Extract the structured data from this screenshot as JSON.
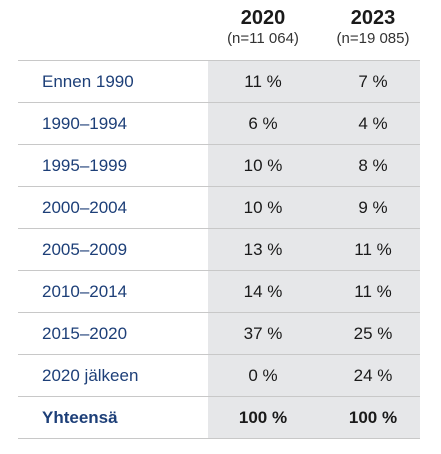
{
  "columns": [
    {
      "year": "2020",
      "n": "(n=11 064)"
    },
    {
      "year": "2023",
      "n": "(n=19 085)"
    }
  ],
  "rows": [
    {
      "label": "Ennen 1990",
      "v2020": "11 %",
      "v2023": "7 %"
    },
    {
      "label": "1990–1994",
      "v2020": "6 %",
      "v2023": "4 %"
    },
    {
      "label": "1995–1999",
      "v2020": "10 %",
      "v2023": "8 %"
    },
    {
      "label": "2000–2004",
      "v2020": "10 %",
      "v2023": "9 %"
    },
    {
      "label": "2005–2009",
      "v2020": "13 %",
      "v2023": "11 %"
    },
    {
      "label": "2010–2014",
      "v2020": "14 %",
      "v2023": "11 %"
    },
    {
      "label": "2015–2020",
      "v2020": "37 %",
      "v2023": "25 %"
    },
    {
      "label": "2020 jälkeen",
      "v2020": "0 %",
      "v2023": "24 %"
    }
  ],
  "total": {
    "label": "Yhteensä",
    "v2020": "100 %",
    "v2023": "100 %"
  },
  "colors": {
    "label_blue": "#1d3f78",
    "value_bg": "#e6e7e9",
    "rule": "#c8c8c8"
  }
}
